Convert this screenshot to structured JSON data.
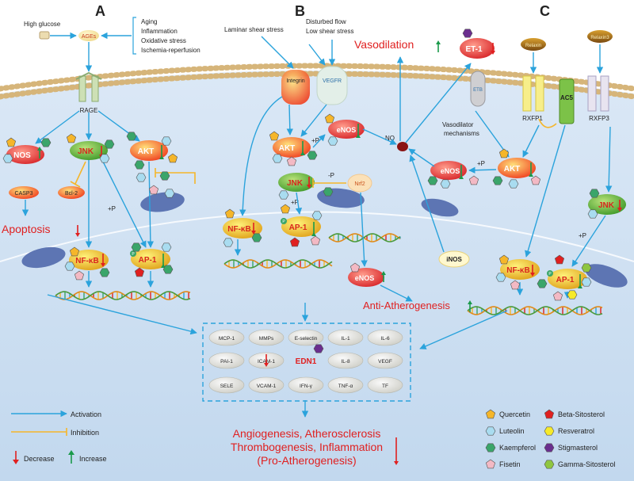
{
  "panels": {
    "a": "A",
    "b": "B",
    "c": "C"
  },
  "panel_a": {
    "high_glucose": "High glucose",
    "ages": "AGEs",
    "stimuli": [
      "Aging",
      "Inflammation",
      "Oxidative stress",
      "Ischemia-reperfusion"
    ],
    "rage": "RAGE",
    "nos": "NOS",
    "jnk": "JNK",
    "akt": "AKT",
    "casp3": "CASP3",
    "bcl2": "Bcl-2",
    "apoptosis": "Apoptosis",
    "nfkb": "NF-κB",
    "ap1": "AP-1",
    "p": "P",
    "plus_p": "+P"
  },
  "panel_b": {
    "laminar": "Laminar shear stress",
    "disturbed": [
      "Disturbed flow",
      "Low shear stress"
    ],
    "integrin": "Integrin",
    "vegfr": "VEGFR",
    "akt": "AKT",
    "plus_p_1": "+P",
    "enos_top": "eNOS",
    "no": "NO",
    "jnk": "JNK",
    "minus_p": "-P",
    "nrf2": "Nrf2",
    "plus_p_2": "+P",
    "nfkb": "NF-κB",
    "ap1": "AP-1",
    "enos_bottom": "eNOS",
    "vasodilation": "Vasodilation",
    "anti_atherogenesis": "Anti-Atherogenesis",
    "inos": "iNOS",
    "p": "P"
  },
  "panel_c": {
    "et1": "ET-1",
    "etb": "ETB",
    "relaxin": "Relaxin",
    "relaxin3": "Relaxin3",
    "rxfp1": "RXFP1",
    "ac5": "AC5",
    "rxfp3": "RXFP3",
    "vasodilator": [
      "Vasodilator",
      "mechanisms"
    ],
    "enos": "eNOS",
    "plus_p": "+P",
    "akt": "AKT",
    "jnk": "JNK",
    "plus_p_2": "+P",
    "nfkb": "NF-κB",
    "ap1": "AP-1",
    "p": "P"
  },
  "genes": [
    [
      "MCP-1",
      "MMPs",
      "E-selectin",
      "IL-1",
      "IL-6"
    ],
    [
      "PAI-1",
      "ICAM-1",
      "EDN1",
      "IL-8",
      "VEGF"
    ],
    [
      "SELE",
      "VCAM-1",
      "IFN-γ",
      "TNF-α",
      "TF"
    ]
  ],
  "outcome": [
    "Angiogenesis, Atherosclerosis",
    "Thrombogenesis, Inflammation",
    "(Pro-Atherogenesis)"
  ],
  "legend_left": {
    "activation": "Activation",
    "inhibition": "Inhibition",
    "decrease": "Decrease",
    "increase": "Increase"
  },
  "legend_compounds": [
    {
      "name": "Quercetin",
      "shape": "pentagon-icon",
      "color": "#f5b62a"
    },
    {
      "name": "Luteolin",
      "shape": "hexagon-icon",
      "color": "#a9dcf0"
    },
    {
      "name": "Kaempferol",
      "shape": "hexagon-icon",
      "color": "#3aa56a"
    },
    {
      "name": "Fisetin",
      "shape": "pentagon-icon",
      "color": "#f3b9c4"
    },
    {
      "name": "Beta-Sitosterol",
      "shape": "pentagon-icon",
      "color": "#e02020"
    },
    {
      "name": "Resveratrol",
      "shape": "hexagon-icon",
      "color": "#f6ea2a"
    },
    {
      "name": "Stigmasterol",
      "shape": "hexagon-icon",
      "color": "#6a2e8e"
    },
    {
      "name": "Gamma-Sitosterol",
      "shape": "hexagon-icon",
      "color": "#8fc640"
    }
  ],
  "colors": {
    "activation": "#2ba3dc",
    "inhibition": "#f5b62a",
    "decrease": "#e02020",
    "increase": "#1a9a4a",
    "title_red": "#e02020",
    "cell": "#c9ddf0",
    "nucleus": "#6e86bf"
  }
}
